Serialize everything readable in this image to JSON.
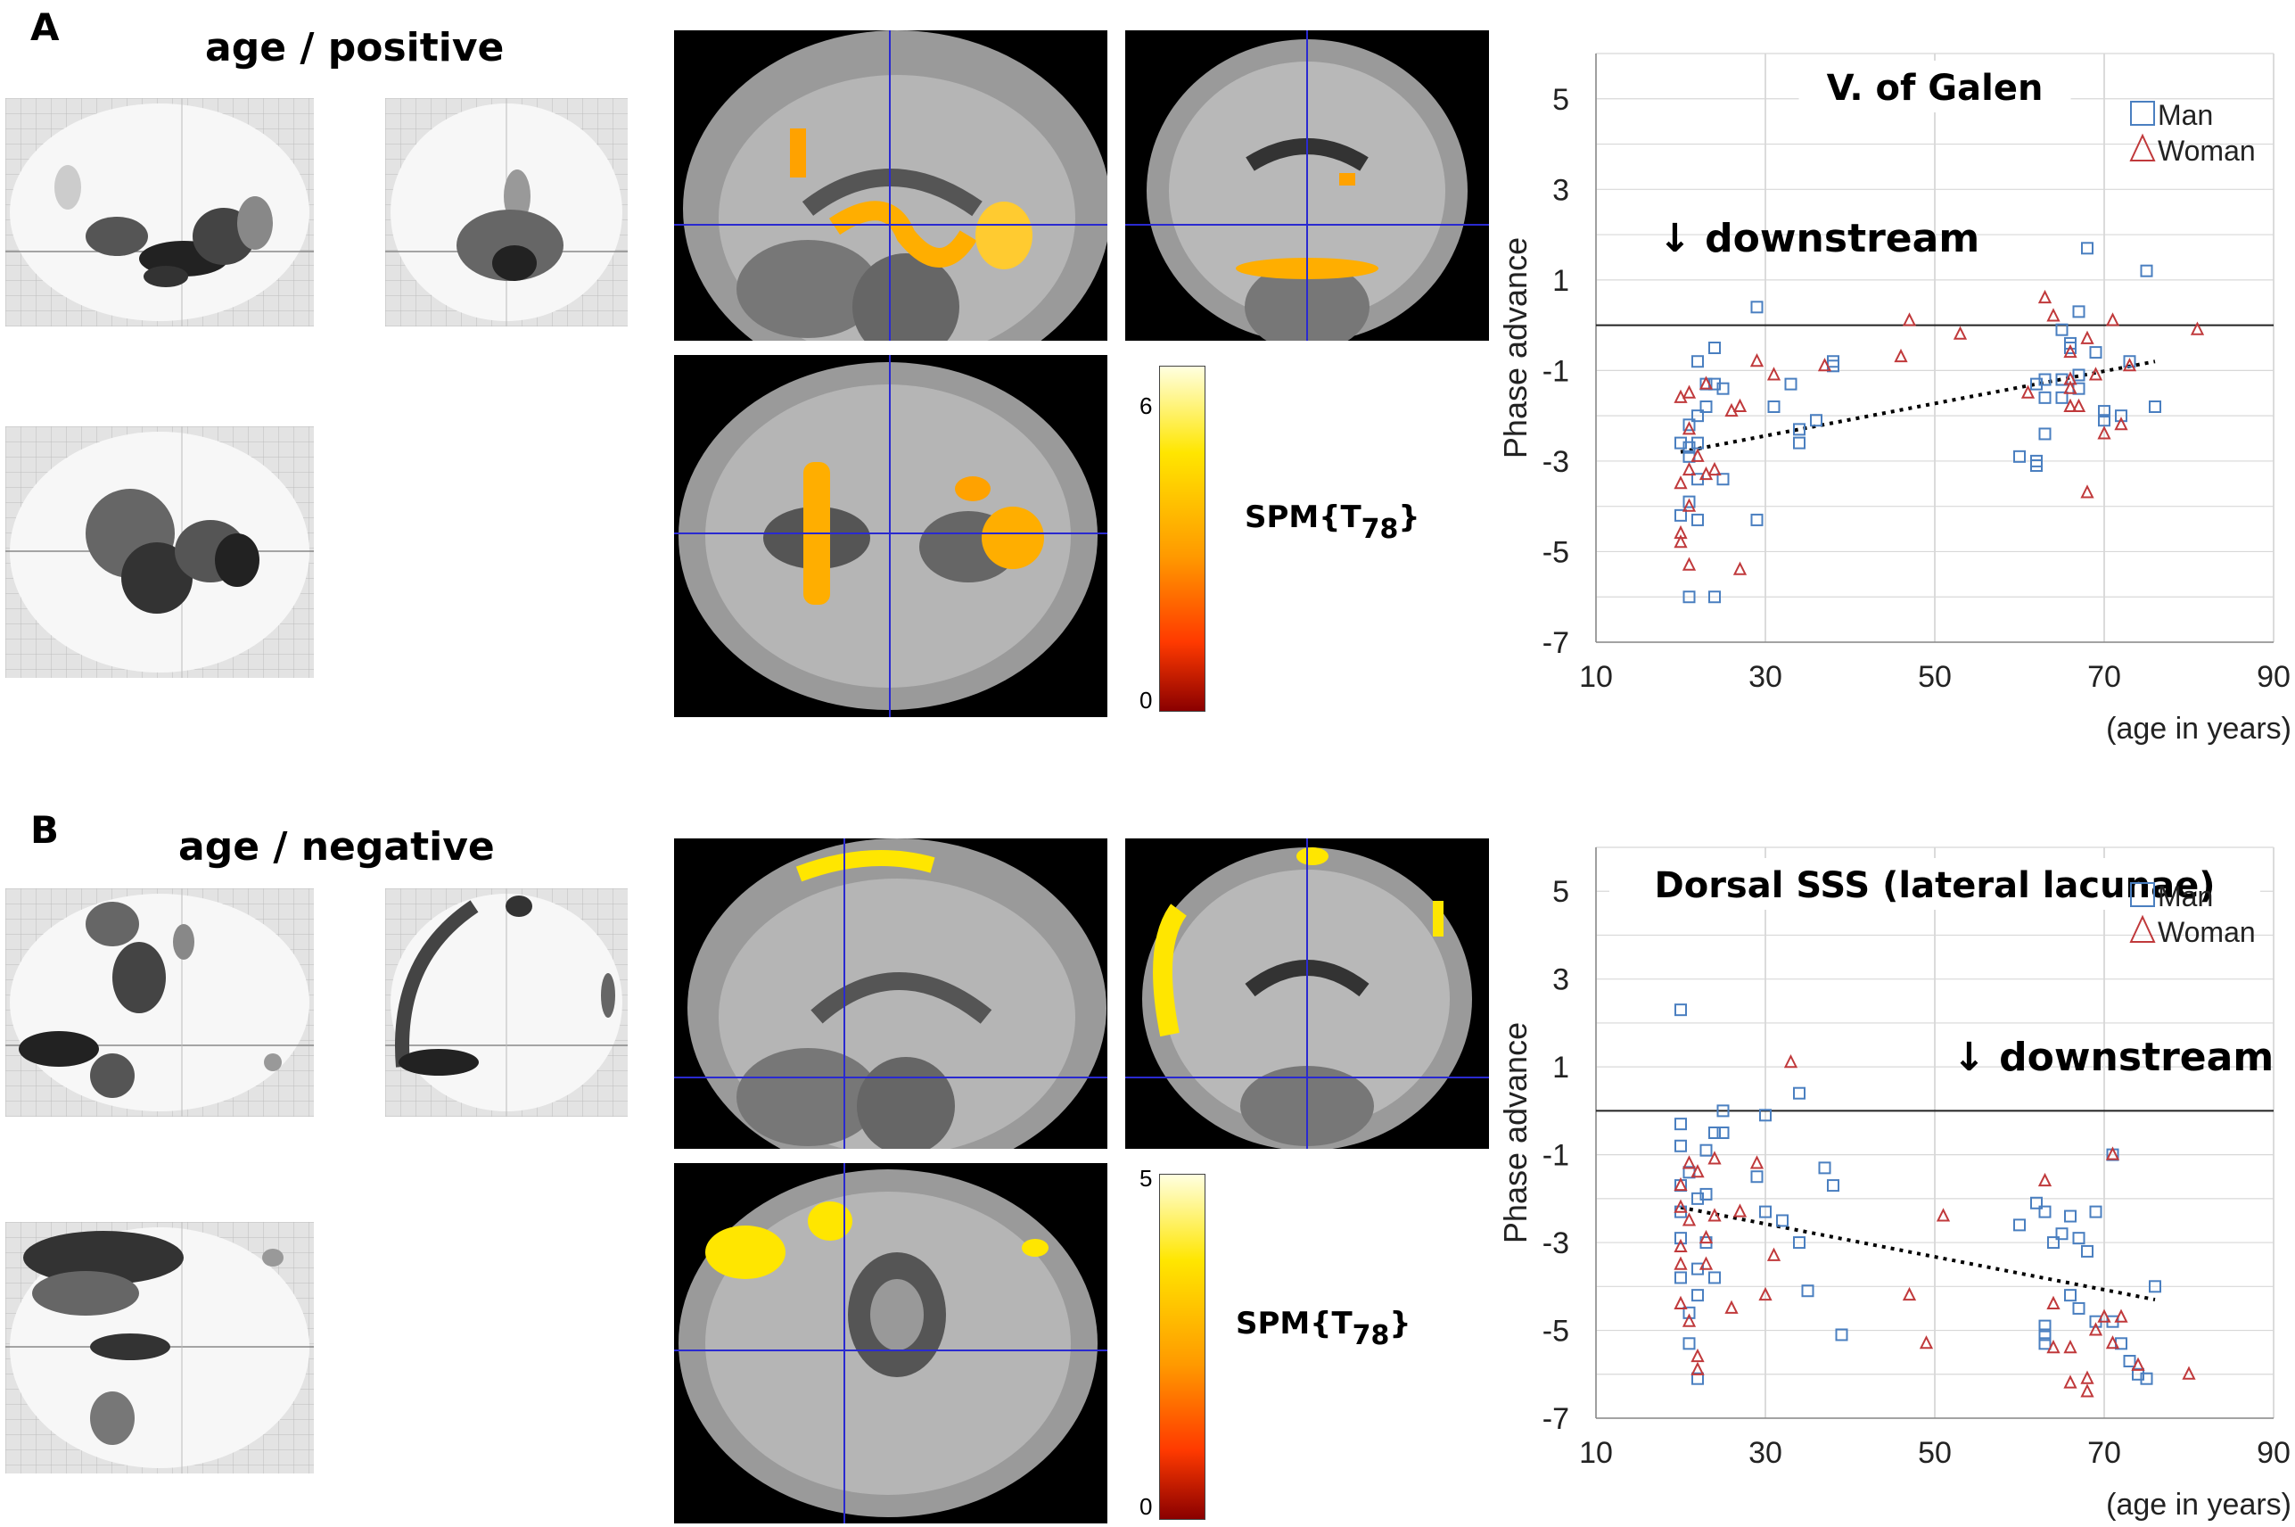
{
  "panels": [
    {
      "letter": "A",
      "title": "age / positive",
      "colorbar": {
        "max_label": "6",
        "min_label": "0"
      },
      "spm_label": {
        "main": "SPM{T",
        "sub": "78",
        "close": "}"
      }
    },
    {
      "letter": "B",
      "title": "age / negative",
      "colorbar": {
        "max_label": "5",
        "min_label": "0"
      },
      "spm_label": {
        "main": "SPM{T",
        "sub": "78",
        "close": "}"
      }
    }
  ],
  "colors": {
    "man": "#4a7fc0",
    "woman": "#c0393b",
    "overlay_hot": "#ffae00",
    "overlay_yellow": "#ffe600",
    "crosshair": "#2a2ad0"
  },
  "chart_data": [
    {
      "type": "scatter",
      "title": "V. of Galen",
      "annotation": "↓ downstream",
      "xlabel": "(age in years)",
      "ylabel": "Phase advance",
      "xlim": [
        10,
        90
      ],
      "ylim": [
        -7,
        6
      ],
      "x_ticks": [
        10,
        30,
        50,
        70,
        90
      ],
      "y_ticks": [
        5,
        3,
        1,
        -1,
        -3,
        -5,
        -7
      ],
      "grid": true,
      "legend_position": "top-right",
      "zero_line": true,
      "trend": {
        "x": [
          20,
          76
        ],
        "y": [
          -2.8,
          -0.8
        ]
      },
      "series": [
        {
          "name": "Man",
          "marker": "square",
          "color": "#4a7fc0",
          "points": [
            [
              20,
              -2.6
            ],
            [
              20,
              -4.2
            ],
            [
              21,
              -3.9
            ],
            [
              21,
              -2.2
            ],
            [
              21,
              -2.7
            ],
            [
              21,
              -2.9
            ],
            [
              21,
              -6.0
            ],
            [
              22,
              -0.8
            ],
            [
              22,
              -2.0
            ],
            [
              22,
              -2.6
            ],
            [
              22,
              -3.4
            ],
            [
              22,
              -4.3
            ],
            [
              23,
              -1.3
            ],
            [
              23,
              -1.8
            ],
            [
              24,
              -0.5
            ],
            [
              24,
              -1.3
            ],
            [
              24,
              -6.0
            ],
            [
              25,
              -1.4
            ],
            [
              25,
              -3.4
            ],
            [
              29,
              0.4
            ],
            [
              29,
              -4.3
            ],
            [
              31,
              -1.8
            ],
            [
              33,
              -1.3
            ],
            [
              34,
              -2.3
            ],
            [
              34,
              -2.6
            ],
            [
              36,
              -2.1
            ],
            [
              38,
              -0.9
            ],
            [
              38,
              -0.8
            ],
            [
              60,
              -2.9
            ],
            [
              62,
              -1.3
            ],
            [
              62,
              -3.1
            ],
            [
              62,
              -3.0
            ],
            [
              63,
              -1.2
            ],
            [
              63,
              -1.6
            ],
            [
              63,
              -2.4
            ],
            [
              65,
              -0.1
            ],
            [
              65,
              -1.6
            ],
            [
              65,
              -1.2
            ],
            [
              66,
              -0.5
            ],
            [
              66,
              -0.4
            ],
            [
              67,
              -1.1
            ],
            [
              67,
              -1.4
            ],
            [
              67,
              0.3
            ],
            [
              68,
              1.7
            ],
            [
              69,
              -0.6
            ],
            [
              70,
              -2.1
            ],
            [
              70,
              -1.9
            ],
            [
              72,
              -2.0
            ],
            [
              73,
              -0.8
            ],
            [
              75,
              1.2
            ],
            [
              76,
              -1.8
            ]
          ]
        },
        {
          "name": "Woman",
          "marker": "triangle",
          "color": "#c0393b",
          "points": [
            [
              20,
              -1.6
            ],
            [
              20,
              -3.5
            ],
            [
              20,
              -4.6
            ],
            [
              20,
              -4.8
            ],
            [
              21,
              -1.5
            ],
            [
              21,
              -2.3
            ],
            [
              21,
              -3.2
            ],
            [
              21,
              -4.0
            ],
            [
              21,
              -5.3
            ],
            [
              22,
              -2.9
            ],
            [
              23,
              -3.3
            ],
            [
              23,
              -1.3
            ],
            [
              24,
              -3.2
            ],
            [
              26,
              -1.9
            ],
            [
              27,
              -1.8
            ],
            [
              27,
              -5.4
            ],
            [
              29,
              -0.8
            ],
            [
              31,
              -1.1
            ],
            [
              37,
              -0.9
            ],
            [
              46,
              -0.7
            ],
            [
              47,
              0.1
            ],
            [
              53,
              -0.2
            ],
            [
              61,
              -1.5
            ],
            [
              63,
              0.6
            ],
            [
              64,
              0.2
            ],
            [
              66,
              -0.6
            ],
            [
              66,
              -1.2
            ],
            [
              66,
              -1.4
            ],
            [
              66,
              -1.8
            ],
            [
              67,
              -1.8
            ],
            [
              68,
              -0.3
            ],
            [
              68,
              -3.7
            ],
            [
              69,
              -1.1
            ],
            [
              70,
              -2.4
            ],
            [
              71,
              0.1
            ],
            [
              72,
              -2.2
            ],
            [
              73,
              -0.9
            ],
            [
              81,
              -0.1
            ]
          ]
        }
      ]
    },
    {
      "type": "scatter",
      "title": "Dorsal SSS (lateral lacunae)",
      "annotation": "↓ downstream",
      "xlabel": "(age in years)",
      "ylabel": "Phase advance",
      "xlim": [
        10,
        90
      ],
      "ylim": [
        -7,
        6
      ],
      "x_ticks": [
        10,
        30,
        50,
        70,
        90
      ],
      "y_ticks": [
        5,
        3,
        1,
        -1,
        -3,
        -5,
        -7
      ],
      "grid": true,
      "legend_position": "top-right",
      "zero_line": true,
      "trend": {
        "x": [
          20,
          76
        ],
        "y": [
          -2.2,
          -4.3
        ]
      },
      "series": [
        {
          "name": "Man",
          "marker": "square",
          "color": "#4a7fc0",
          "points": [
            [
              20,
              2.3
            ],
            [
              20,
              -0.3
            ],
            [
              20,
              -0.8
            ],
            [
              20,
              -1.7
            ],
            [
              20,
              -2.3
            ],
            [
              20,
              -2.9
            ],
            [
              20,
              -3.8
            ],
            [
              21,
              -4.6
            ],
            [
              21,
              -5.3
            ],
            [
              21,
              -1.4
            ],
            [
              22,
              -2.0
            ],
            [
              22,
              -3.6
            ],
            [
              22,
              -4.2
            ],
            [
              22,
              -6.1
            ],
            [
              23,
              -0.9
            ],
            [
              23,
              -1.9
            ],
            [
              23,
              -3.0
            ],
            [
              24,
              -3.8
            ],
            [
              24,
              -0.5
            ],
            [
              25,
              -0.5
            ],
            [
              25,
              0.0
            ],
            [
              29,
              -1.5
            ],
            [
              30,
              -0.1
            ],
            [
              30,
              -2.3
            ],
            [
              32,
              -2.5
            ],
            [
              34,
              -3.0
            ],
            [
              34,
              0.4
            ],
            [
              35,
              -4.1
            ],
            [
              37,
              -1.3
            ],
            [
              38,
              -1.7
            ],
            [
              39,
              -5.1
            ],
            [
              60,
              -2.6
            ],
            [
              62,
              -2.1
            ],
            [
              63,
              -4.9
            ],
            [
              63,
              -5.1
            ],
            [
              63,
              -5.3
            ],
            [
              63,
              -2.3
            ],
            [
              64,
              -3.0
            ],
            [
              65,
              -2.8
            ],
            [
              66,
              -4.2
            ],
            [
              66,
              -2.4
            ],
            [
              67,
              -2.9
            ],
            [
              67,
              -4.5
            ],
            [
              68,
              -3.2
            ],
            [
              69,
              -2.3
            ],
            [
              69,
              -4.8
            ],
            [
              71,
              -4.8
            ],
            [
              72,
              -5.3
            ],
            [
              73,
              -5.7
            ],
            [
              74,
              -6.0
            ],
            [
              75,
              -6.1
            ],
            [
              76,
              -4.0
            ],
            [
              71,
              -1.0
            ]
          ]
        },
        {
          "name": "Woman",
          "marker": "triangle",
          "color": "#c0393b",
          "points": [
            [
              20,
              -1.7
            ],
            [
              20,
              -2.2
            ],
            [
              20,
              -3.1
            ],
            [
              20,
              -3.5
            ],
            [
              20,
              -4.4
            ],
            [
              21,
              -1.2
            ],
            [
              21,
              -2.5
            ],
            [
              21,
              -4.8
            ],
            [
              22,
              -1.4
            ],
            [
              22,
              -5.6
            ],
            [
              22,
              -5.9
            ],
            [
              23,
              -2.9
            ],
            [
              23,
              -3.5
            ],
            [
              24,
              -1.1
            ],
            [
              24,
              -2.4
            ],
            [
              26,
              -4.5
            ],
            [
              27,
              -2.3
            ],
            [
              29,
              -1.2
            ],
            [
              30,
              -4.2
            ],
            [
              31,
              -3.3
            ],
            [
              33,
              1.1
            ],
            [
              47,
              -4.2
            ],
            [
              49,
              -5.3
            ],
            [
              51,
              -2.4
            ],
            [
              63,
              -1.6
            ],
            [
              64,
              -5.4
            ],
            [
              64,
              -4.4
            ],
            [
              66,
              -5.4
            ],
            [
              66,
              -6.2
            ],
            [
              68,
              -6.4
            ],
            [
              68,
              -6.1
            ],
            [
              69,
              -5.0
            ],
            [
              70,
              -4.7
            ],
            [
              71,
              -5.3
            ],
            [
              71,
              -1.0
            ],
            [
              72,
              -4.7
            ],
            [
              74,
              -5.8
            ],
            [
              80,
              -6.0
            ]
          ]
        }
      ]
    }
  ]
}
